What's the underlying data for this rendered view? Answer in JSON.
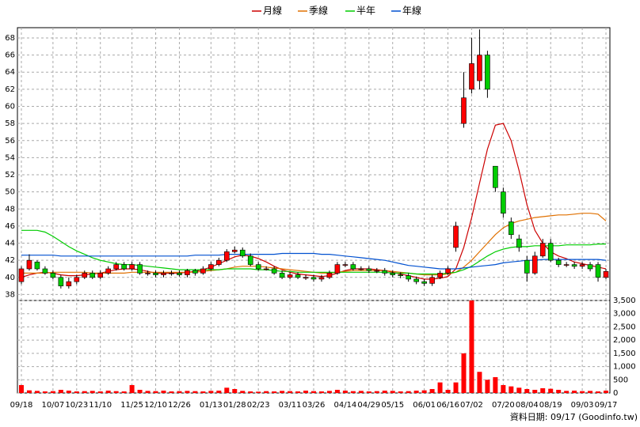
{
  "chart_data": {
    "type": "candlestick",
    "footer": "資料日期: 09/17 (Goodinfo.tw)",
    "categories": [
      "09/18",
      null,
      null,
      null,
      "10/07",
      null,
      null,
      "10/23",
      null,
      null,
      "11/10",
      null,
      null,
      null,
      "11/25",
      null,
      null,
      "12/10",
      null,
      null,
      "12/26",
      null,
      null,
      null,
      "01/13",
      null,
      null,
      "01/28",
      null,
      null,
      "02/23",
      null,
      null,
      null,
      "03/11",
      null,
      null,
      "03/26",
      null,
      null,
      null,
      "04/14",
      null,
      null,
      "04/29",
      null,
      null,
      "05/15",
      null,
      null,
      null,
      "06/01",
      null,
      null,
      "06/16",
      null,
      null,
      "07/02",
      null,
      null,
      null,
      "07/20",
      null,
      null,
      "08/04",
      null,
      null,
      "08/19",
      null,
      null,
      null,
      "09/03",
      null,
      null,
      "09/17"
    ],
    "up_color": "#ff0000",
    "down_color": "#00cc00",
    "volume_color": "#ff0000",
    "grid": true,
    "candles": {
      "open": [
        39.5,
        41,
        41.8,
        41,
        40.5,
        40,
        39,
        39.5,
        40,
        40.5,
        40,
        40.5,
        41,
        41.5,
        41,
        41.5,
        40.5,
        40.5,
        40.3,
        40.5,
        40.5,
        40.3,
        40.8,
        40.5,
        41,
        41.5,
        42,
        43,
        43.2,
        42.5,
        41.5,
        41,
        41,
        40.5,
        40,
        40.3,
        40,
        40,
        39.8,
        40,
        40.5,
        41.5,
        41.5,
        41,
        41,
        40.8,
        40.8,
        40.5,
        40.3,
        40.2,
        39.8,
        39.5,
        39.3,
        40,
        40.5,
        43.5,
        58,
        62,
        63,
        66,
        53,
        50,
        46.5,
        44.5,
        42,
        40.5,
        42.5,
        44,
        42,
        41.5,
        41.5,
        41.3,
        41.5,
        41.5,
        40
      ],
      "close": [
        41,
        42,
        41,
        40.5,
        40,
        39,
        39.5,
        40,
        40.5,
        40,
        40.5,
        41,
        41.5,
        41,
        41.5,
        40.5,
        40.5,
        40.3,
        40.5,
        40.5,
        40.3,
        40.8,
        40.5,
        41,
        41.5,
        42,
        43,
        43.2,
        42.5,
        41.5,
        41,
        41,
        40.5,
        40,
        40.3,
        40,
        40,
        39.8,
        40,
        40.5,
        41.5,
        41.5,
        41,
        41,
        40.8,
        40.8,
        40.5,
        40.3,
        40.2,
        39.8,
        39.5,
        39.3,
        40,
        40.5,
        41,
        46,
        61,
        65,
        66,
        62,
        50.5,
        47.5,
        45,
        43.5,
        40.5,
        42.5,
        44,
        42,
        41.5,
        41.5,
        41.3,
        41.5,
        41,
        40,
        40.7
      ],
      "high": [
        41.3,
        42.7,
        42,
        41.3,
        40.8,
        40.3,
        40,
        40.3,
        40.8,
        40.8,
        40.8,
        41.3,
        41.8,
        41.8,
        41.8,
        41.8,
        40.8,
        40.8,
        40.8,
        40.8,
        40.8,
        41,
        41,
        41.3,
        41.8,
        42.3,
        43.3,
        43.6,
        43.5,
        42.8,
        41.8,
        41.3,
        41.3,
        40.8,
        40.6,
        40.6,
        40.3,
        40.3,
        40.3,
        40.8,
        41.8,
        41.8,
        41.8,
        41.3,
        41.3,
        41.1,
        41.1,
        40.8,
        40.6,
        40.5,
        40.1,
        39.8,
        40.3,
        40.8,
        41.3,
        46.5,
        64,
        68,
        69,
        66.5,
        53,
        50.5,
        47,
        45,
        42.5,
        43,
        44.5,
        44.5,
        42.3,
        41.8,
        41.8,
        41.8,
        41.8,
        41.8,
        41
      ],
      "low": [
        39.2,
        40.8,
        40.8,
        40.3,
        39.8,
        38.7,
        38.7,
        39.2,
        39.8,
        39.8,
        39.8,
        40.3,
        40.8,
        40.8,
        40.8,
        40.3,
        40.2,
        40,
        40,
        40.2,
        40.1,
        40,
        40.2,
        40.3,
        40.8,
        41.3,
        41.8,
        42.8,
        42.3,
        41.3,
        40.8,
        40.8,
        40.3,
        39.8,
        39.8,
        39.8,
        39.7,
        39.5,
        39.5,
        39.8,
        40.3,
        41.2,
        40.8,
        40.8,
        40.5,
        40.5,
        40.2,
        40,
        39.9,
        39.5,
        39.2,
        39,
        39,
        39.8,
        40.3,
        43,
        57.5,
        61.5,
        62,
        61,
        50,
        47,
        44.5,
        43,
        39.5,
        40.3,
        42.3,
        41.8,
        41.2,
        41.2,
        41,
        41,
        40.7,
        39.5,
        39.8
      ]
    },
    "volume": [
      300,
      100,
      80,
      60,
      70,
      120,
      90,
      60,
      70,
      80,
      60,
      90,
      70,
      60,
      300,
      120,
      80,
      70,
      90,
      60,
      70,
      80,
      70,
      60,
      80,
      90,
      200,
      150,
      80,
      60,
      50,
      70,
      60,
      80,
      70,
      60,
      90,
      70,
      60,
      80,
      120,
      90,
      70,
      80,
      60,
      70,
      90,
      80,
      60,
      70,
      90,
      100,
      150,
      400,
      120,
      400,
      1500,
      3500,
      800,
      500,
      600,
      300,
      250,
      200,
      150,
      120,
      180,
      160,
      120,
      80,
      90,
      70,
      80,
      60,
      90
    ],
    "series": [
      {
        "name": "月線",
        "color": "#cc0000",
        "values": [
          40,
          40.3,
          40.5,
          40.6,
          40.5,
          40.3,
          40.2,
          40.2,
          40.3,
          40.4,
          40.5,
          40.7,
          40.9,
          41,
          41,
          40.9,
          40.7,
          40.5,
          40.5,
          40.5,
          40.5,
          40.6,
          40.7,
          40.9,
          41.2,
          41.6,
          42,
          42.4,
          42.6,
          42.5,
          42.2,
          41.8,
          41.3,
          40.9,
          40.6,
          40.4,
          40.3,
          40.2,
          40.1,
          40.2,
          40.5,
          40.8,
          41,
          41,
          41,
          40.9,
          40.8,
          40.6,
          40.4,
          40.2,
          40,
          39.8,
          39.8,
          39.9,
          40.1,
          41,
          43.5,
          47,
          51,
          55,
          57.8,
          58,
          56,
          52.5,
          48.5,
          45.5,
          44,
          43,
          42.5,
          42.2,
          41.8,
          41.6,
          41.4,
          41.2,
          41
        ]
      },
      {
        "name": "季線",
        "color": "#e07000",
        "values": [
          40.5,
          40.5,
          40.5,
          40.5,
          40.6,
          40.6,
          40.6,
          40.6,
          40.6,
          40.5,
          40.5,
          40.5,
          40.5,
          40.5,
          40.6,
          40.6,
          40.6,
          40.6,
          40.6,
          40.6,
          40.6,
          40.6,
          40.6,
          40.7,
          40.8,
          40.9,
          41,
          41.2,
          41.3,
          41.3,
          41.3,
          41.2,
          41.1,
          41,
          40.9,
          40.8,
          40.7,
          40.6,
          40.5,
          40.5,
          40.6,
          40.7,
          40.8,
          40.8,
          40.8,
          40.8,
          40.8,
          40.7,
          40.6,
          40.5,
          40.4,
          40.3,
          40.3,
          40.3,
          40.4,
          40.6,
          41.2,
          42,
          43,
          44,
          45,
          45.8,
          46.3,
          46.6,
          46.8,
          47,
          47.1,
          47.2,
          47.3,
          47.3,
          47.4,
          47.5,
          47.5,
          47.4,
          46.6
        ]
      },
      {
        "name": "半年",
        "color": "#00cc00",
        "values": [
          45.5,
          45.5,
          45.5,
          45.3,
          44.8,
          44.2,
          43.6,
          43.1,
          42.7,
          42.3,
          42,
          41.8,
          41.6,
          41.5,
          41.5,
          41.4,
          41.3,
          41.2,
          41.1,
          41,
          40.9,
          40.9,
          40.9,
          40.9,
          40.9,
          40.9,
          41,
          41,
          41,
          41,
          40.9,
          40.9,
          40.8,
          40.7,
          40.7,
          40.6,
          40.6,
          40.6,
          40.6,
          40.6,
          40.6,
          40.6,
          40.6,
          40.6,
          40.6,
          40.6,
          40.6,
          40.5,
          40.5,
          40.5,
          40.4,
          40.4,
          40.4,
          40.4,
          40.5,
          40.6,
          40.9,
          41.3,
          41.9,
          42.5,
          43,
          43.3,
          43.5,
          43.6,
          43.6,
          43.7,
          43.7,
          43.7,
          43.7,
          43.8,
          43.8,
          43.8,
          43.8,
          43.9,
          43.9
        ]
      },
      {
        "name": "年線",
        "color": "#0050d0",
        "values": [
          42.6,
          42.6,
          42.6,
          42.6,
          42.6,
          42.5,
          42.5,
          42.5,
          42.5,
          42.5,
          42.5,
          42.5,
          42.5,
          42.5,
          42.5,
          42.5,
          42.5,
          42.5,
          42.5,
          42.5,
          42.5,
          42.5,
          42.6,
          42.6,
          42.6,
          42.6,
          42.7,
          42.7,
          42.7,
          42.7,
          42.7,
          42.7,
          42.7,
          42.8,
          42.8,
          42.8,
          42.8,
          42.8,
          42.7,
          42.7,
          42.6,
          42.5,
          42.4,
          42.3,
          42.2,
          42.1,
          42,
          41.8,
          41.6,
          41.4,
          41.3,
          41.2,
          41.1,
          41,
          41,
          41,
          41.1,
          41.2,
          41.3,
          41.4,
          41.5,
          41.7,
          41.8,
          41.9,
          42,
          42,
          42.1,
          42.1,
          42.1,
          42.1,
          42.1,
          42.1,
          42.1,
          42.1,
          42
        ]
      }
    ],
    "ylim": [
      37.3,
      69.2
    ],
    "yticks": [
      38,
      40,
      42,
      44,
      46,
      48,
      50,
      52,
      54,
      56,
      58,
      60,
      62,
      64,
      66,
      68
    ],
    "y2lim": [
      0,
      3500
    ],
    "y2ticks": [
      0,
      500,
      {
        "value": 1000,
        "label": "1,000"
      },
      {
        "value": 1500,
        "label": "1,500"
      },
      {
        "value": 2000,
        "label": "2,000"
      },
      {
        "value": 2500,
        "label": "2,500"
      },
      {
        "value": 3000,
        "label": "3,000"
      },
      {
        "value": 3500,
        "label": "3,500"
      }
    ]
  }
}
